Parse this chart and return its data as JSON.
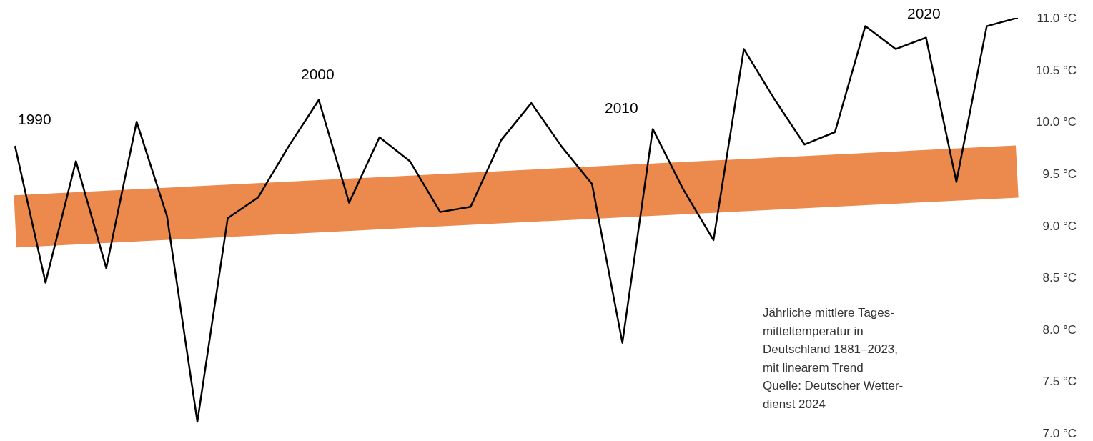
{
  "chart_data": {
    "type": "line",
    "categories": [
      null,
      null,
      null,
      null,
      null,
      null,
      null,
      null,
      null,
      null,
      null,
      null,
      null,
      null,
      null,
      null,
      null,
      null,
      null,
      null,
      null,
      null,
      null,
      null,
      null,
      null,
      null,
      null,
      null,
      null,
      null,
      null,
      null,
      null
    ],
    "series": [
      {
        "type": "line",
        "values": [
          9.04,
          null,
          null,
          null,
          null,
          null,
          null,
          null,
          null,
          null,
          null,
          null,
          null,
          null,
          null,
          null,
          null,
          null,
          null,
          null,
          null,
          null,
          null,
          null,
          null,
          null,
          null,
          null,
          null,
          null,
          null,
          null,
          null,
          9.52
        ],
        "color": "#eb8a4c"
      },
      {
        "type": "line",
        "color": "#000000",
        "values": [
          9.76,
          8.45,
          9.62,
          8.59,
          10.0,
          9.09,
          7.11,
          9.07,
          9.27,
          9.76,
          10.21,
          9.22,
          9.85,
          9.62,
          9.13,
          9.18,
          9.82,
          10.18,
          9.76,
          9.4,
          7.87,
          9.93,
          9.35,
          8.86,
          10.7,
          10.22,
          9.78,
          9.9,
          10.92,
          10.7,
          10.81,
          9.42,
          10.92,
          11.0
        ]
      }
    ],
    "ylim": [
      7,
      11
    ],
    "yticks": [
      {
        "value": 7,
        "label": "7.0 °C"
      },
      {
        "value": 7.5,
        "label": "7.5 °C"
      },
      {
        "value": 8,
        "label": "8.0 °C"
      },
      {
        "value": 8.5,
        "label": "8.5 °C"
      },
      {
        "value": 9,
        "label": "9.0 °C"
      },
      {
        "value": 9.5,
        "label": "9.5 °C"
      },
      {
        "value": 10,
        "label": "10.0 °C"
      },
      {
        "value": 10.5,
        "label": "10.5 °C"
      },
      {
        "value": 11,
        "label": "11.0 °C"
      }
    ],
    "tick_labels": "y",
    "grid": false,
    "marker": "none",
    "line_style": "solid",
    "annotations": [
      "1990",
      "2000",
      "2010",
      "2020",
      "Jährliche mittlere Tages-\nmitteltemperatur in\nDeutschland 1881–2023,\nmit linearem Trend",
      "Quelle: Deutscher Wetter-\ndienst 2024"
    ]
  }
}
